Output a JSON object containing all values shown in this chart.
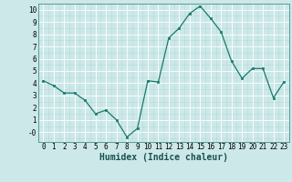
{
  "x": [
    0,
    1,
    2,
    3,
    4,
    5,
    6,
    7,
    8,
    9,
    10,
    11,
    12,
    13,
    14,
    15,
    16,
    17,
    18,
    19,
    20,
    21,
    22,
    23
  ],
  "y": [
    4.2,
    3.8,
    3.2,
    3.2,
    2.6,
    1.5,
    1.8,
    1.0,
    -0.4,
    0.3,
    4.2,
    4.1,
    7.7,
    8.5,
    9.7,
    10.3,
    9.3,
    8.2,
    5.8,
    4.4,
    5.2,
    5.2,
    2.8,
    4.1
  ],
  "xlabel": "Humidex (Indice chaleur)",
  "xlim": [
    -0.5,
    23.5
  ],
  "ylim": [
    -0.8,
    10.5
  ],
  "line_color": "#1a7a6e",
  "marker_color": "#1a7a6e",
  "bg_color": "#cce8e8",
  "grid_major_color": "#ffffff",
  "grid_minor_color": "#b8d8d8",
  "xlabel_fontsize": 7,
  "tick_fontsize": 5.5
}
